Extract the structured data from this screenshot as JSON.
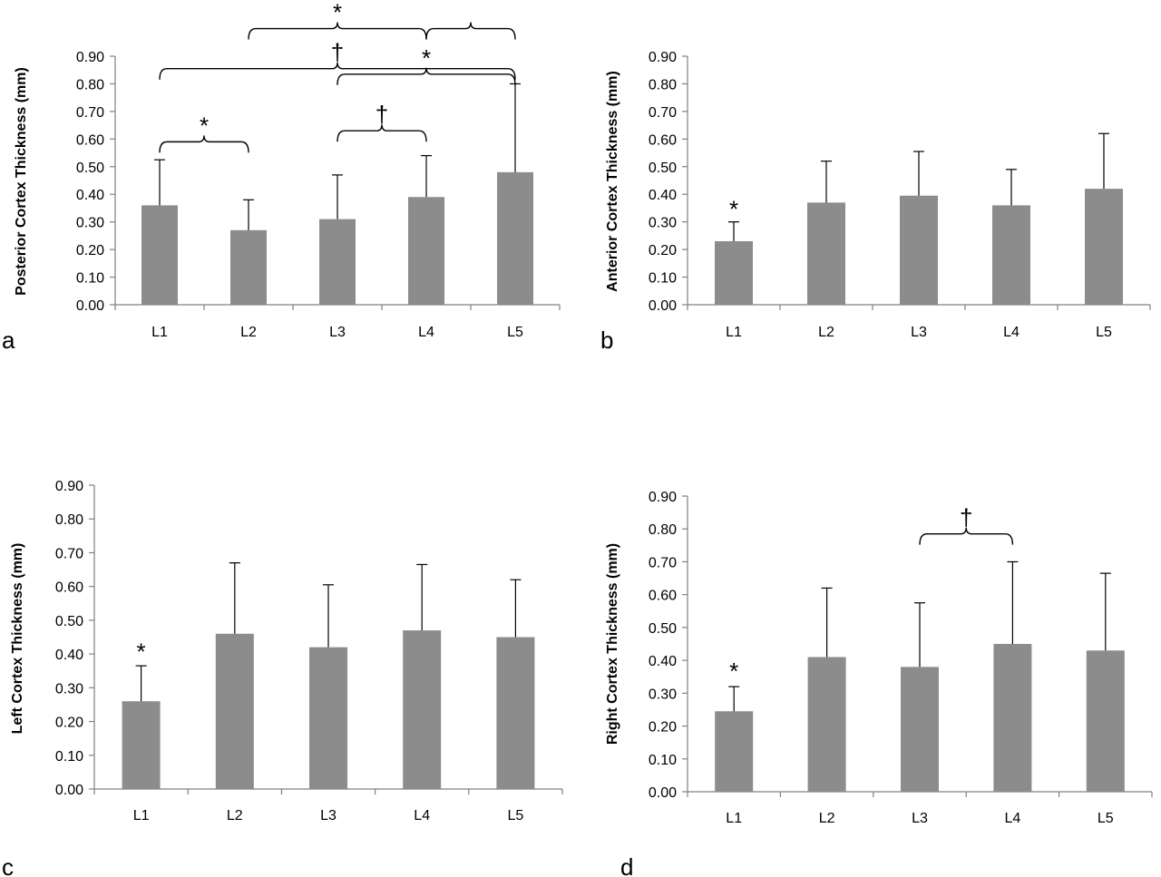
{
  "chart_data": [
    {
      "type": "bar",
      "panel_label": "a",
      "ylabel": "Posterior  Cortex Thickness (mm)",
      "categories": [
        "L1",
        "L2",
        "L3",
        "L4",
        "L5"
      ],
      "values": [
        0.36,
        0.27,
        0.31,
        0.39,
        0.48
      ],
      "error_upper": [
        0.525,
        0.38,
        0.47,
        0.54,
        0.8
      ],
      "ylim": [
        0,
        0.9
      ],
      "yticks": [
        "0.00",
        "0.10",
        "0.20",
        "0.30",
        "0.40",
        "0.50",
        "0.60",
        "0.70",
        "0.80",
        "0.90"
      ],
      "grid": false,
      "annotations": [
        {
          "from": "L1",
          "to": "L2",
          "y": 0.59,
          "symbol": "*"
        },
        {
          "from": "L3",
          "to": "L4",
          "y": 0.63,
          "symbol": "†"
        },
        {
          "from": "L1",
          "to": "L5",
          "y": 0.855,
          "symbol": "†"
        },
        {
          "from": "L3",
          "to": "L5",
          "y": 0.835,
          "symbol": "*"
        },
        {
          "from": "L2",
          "to": "L4",
          "y": 1.0,
          "symbol": "*"
        },
        {
          "from": "L4",
          "to": "L5",
          "y": 1.0,
          "symbol": ""
        }
      ]
    },
    {
      "type": "bar",
      "panel_label": "b",
      "ylabel": "Anterior  Cortex Thickness (mm)",
      "categories": [
        "L1",
        "L2",
        "L3",
        "L4",
        "L5"
      ],
      "values": [
        0.23,
        0.37,
        0.395,
        0.36,
        0.42
      ],
      "error_upper": [
        0.3,
        0.52,
        0.555,
        0.49,
        0.62
      ],
      "ylim": [
        0,
        0.9
      ],
      "yticks": [
        "0.00",
        "0.10",
        "0.20",
        "0.30",
        "0.40",
        "0.50",
        "0.60",
        "0.70",
        "0.80",
        "0.90"
      ],
      "grid": false,
      "annotations": [
        {
          "at": "L1",
          "y": 0.35,
          "symbol": "*"
        }
      ]
    },
    {
      "type": "bar",
      "panel_label": "c",
      "ylabel": "Left  Cortex Thickness (mm)",
      "categories": [
        "L1",
        "L2",
        "L3",
        "L4",
        "L5"
      ],
      "values": [
        0.26,
        0.46,
        0.42,
        0.47,
        0.45
      ],
      "error_upper": [
        0.365,
        0.67,
        0.605,
        0.665,
        0.62
      ],
      "ylim": [
        0,
        0.9
      ],
      "yticks": [
        "0.00",
        "0.10",
        "0.20",
        "0.30",
        "0.40",
        "0.50",
        "0.60",
        "0.70",
        "0.80",
        "0.90"
      ],
      "grid": false,
      "annotations": [
        {
          "at": "L1",
          "y": 0.41,
          "symbol": "*"
        }
      ]
    },
    {
      "type": "bar",
      "panel_label": "d",
      "ylabel": "Right Cortex Thickness (mm)",
      "categories": [
        "L1",
        "L2",
        "L3",
        "L4",
        "L5"
      ],
      "values": [
        0.245,
        0.41,
        0.38,
        0.45,
        0.43
      ],
      "error_upper": [
        0.32,
        0.62,
        0.575,
        0.7,
        0.665
      ],
      "ylim": [
        0,
        0.9
      ],
      "yticks": [
        "0.00",
        "0.10",
        "0.20",
        "0.30",
        "0.40",
        "0.50",
        "0.60",
        "0.70",
        "0.80",
        "0.90"
      ],
      "grid": false,
      "annotations": [
        {
          "at": "L1",
          "y": 0.37,
          "symbol": "*"
        },
        {
          "from": "L3",
          "to": "L4",
          "y": 0.785,
          "symbol": "†"
        }
      ]
    }
  ],
  "colors": {
    "bar": "#8c8c8c",
    "axis": "#808080",
    "error_bar": "#000000"
  }
}
